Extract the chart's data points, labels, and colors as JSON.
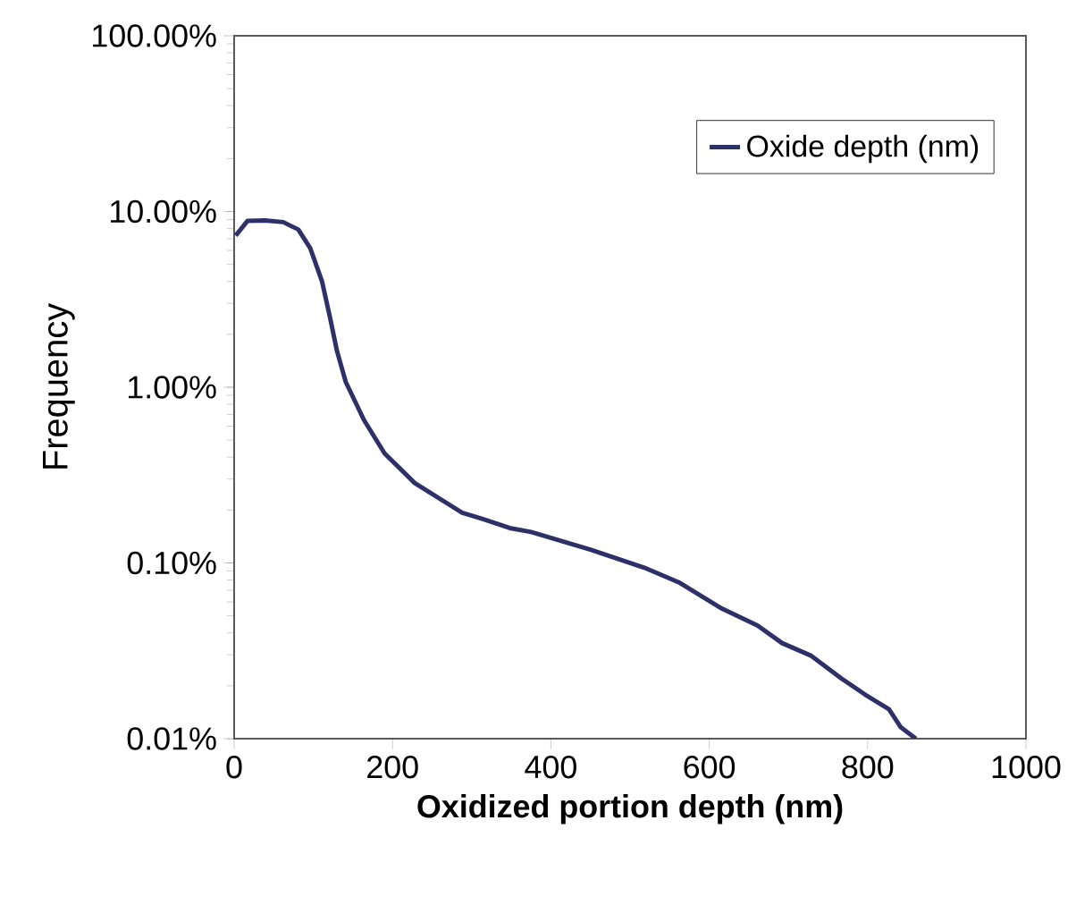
{
  "chart_data": {
    "type": "line",
    "xlabel": "Oxidized portion depth (nm)",
    "ylabel": "Frequency",
    "xlim": [
      0,
      1000
    ],
    "xticks": [
      0,
      200,
      400,
      600,
      800,
      1000
    ],
    "ylim": [
      0.01,
      100
    ],
    "yticks": [
      {
        "value": 0.01,
        "label": "0.01%"
      },
      {
        "value": 0.1,
        "label": "0.10%"
      },
      {
        "value": 1,
        "label": "1.00%"
      },
      {
        "value": 10,
        "label": "10.00%"
      },
      {
        "value": 100,
        "label": "100.00%"
      }
    ],
    "log": "y",
    "grid": false,
    "legend": "top right",
    "marker": "none",
    "line_style": "solid",
    "series": [
      {
        "name": "Oxide depth (nm)",
        "color": "#2e3168",
        "x": [
          2,
          17,
          39,
          62,
          81,
          96,
          111,
          121,
          130,
          141,
          164,
          190,
          228,
          288,
          314,
          348,
          375,
          450,
          518,
          563,
          616,
          661,
          692,
          729,
          767,
          797,
          827,
          842,
          861
        ],
        "values": [
          7.3,
          8.85,
          8.9,
          8.7,
          7.9,
          6.2,
          4.0,
          2.5,
          1.6,
          1.07,
          0.65,
          0.42,
          0.285,
          0.193,
          0.178,
          0.158,
          0.15,
          0.119,
          0.094,
          0.077,
          0.055,
          0.044,
          0.035,
          0.0296,
          0.022,
          0.0178,
          0.0147,
          0.0116,
          0.01
        ]
      }
    ]
  }
}
